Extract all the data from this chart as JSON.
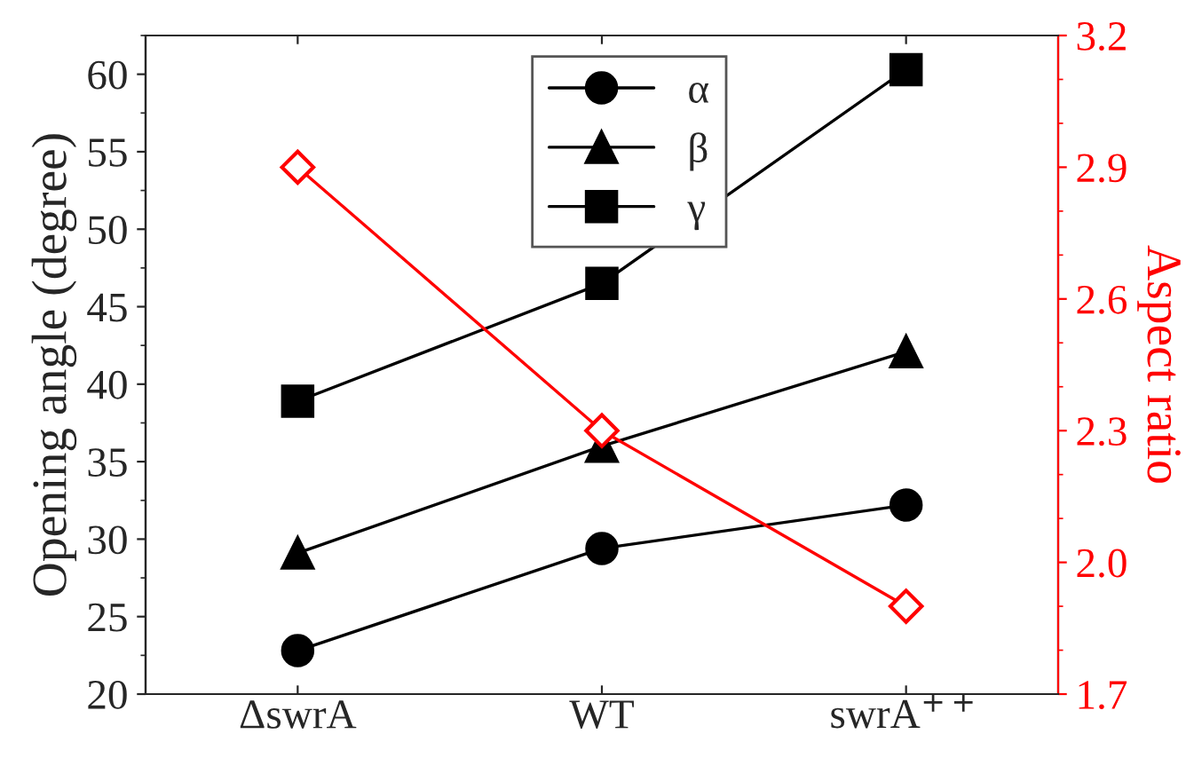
{
  "chart_data": {
    "type": "line",
    "categories": [
      "ΔswrA",
      "WT",
      "swrA$^{++}$"
    ],
    "ylabel": "Opening angle (degree)",
    "y2label": "Aspect ratio",
    "ylim": [
      20,
      62.5
    ],
    "yticks": [
      20,
      25,
      30,
      35,
      40,
      45,
      50,
      55,
      60
    ],
    "y2lim": [
      1.7,
      3.2
    ],
    "y2ticks": [
      1.7,
      {
        "value": 2,
        "label": "2.0"
      },
      2.3,
      2.6,
      2.9,
      3.2
    ],
    "legend": "top",
    "grid": false,
    "series": [
      {
        "name": "α",
        "color": "#000000",
        "marker": "circle",
        "values": [
          22.8,
          29.4,
          32.2
        ]
      },
      {
        "name": "β",
        "color": "#000000",
        "marker": "triangle",
        "values": [
          29.1,
          36.0,
          42.1
        ]
      },
      {
        "name": "γ",
        "color": "#000000",
        "marker": "square",
        "values": [
          38.9,
          46.5,
          60.3
        ]
      },
      {
        "color": "#ff0000",
        "marker": "diamond",
        "axis": "y2",
        "values": [
          2.9,
          2.3,
          1.9
        ]
      }
    ]
  }
}
